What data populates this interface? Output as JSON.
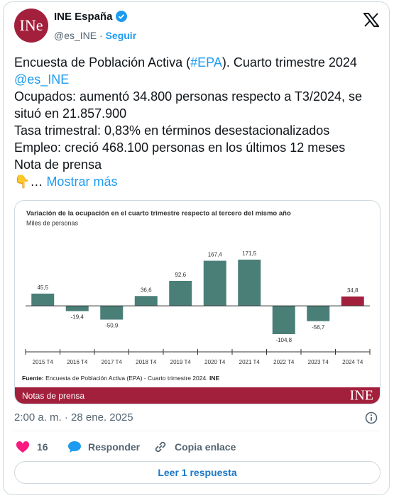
{
  "header": {
    "name": "INE España",
    "handle": "@es_INE",
    "follow": "Seguir",
    "avatar": "INe"
  },
  "body": [
    [
      {
        "text": "Encuesta de Población Activa ("
      },
      {
        "text": "#EPA",
        "link": true
      },
      {
        "text": "). Cuarto trimestre 2024 "
      },
      {
        "text": "@es_INE",
        "link": true
      }
    ],
    [
      {
        "text": "Ocupados: aumentó 34.800 personas respecto a T3/2024, se situó en 21.857.900"
      }
    ],
    [
      {
        "text": "Tasa trimestral: 0,83% en términos desestacionalizados"
      }
    ],
    [
      {
        "text": "Empleo: creció 468.100 personas en los últimos 12 meses"
      }
    ],
    [
      {
        "text": "Nota de prensa"
      }
    ],
    [
      {
        "text": "👇"
      },
      {
        "text": "… "
      },
      {
        "text": "Mostrar más",
        "link": true
      }
    ]
  ],
  "chart_data": {
    "type": "bar",
    "title": "Variación de la ocupación en el cuarto trimestre respecto al tercero del mismo año",
    "subtitle": "Miles de personas",
    "categories": [
      "2015 T4",
      "2016 T4",
      "2017 T4",
      "2018 T4",
      "2019 T4",
      "2020 T4",
      "2021 T4",
      "2022 T4",
      "2023 T4",
      "2024 T4"
    ],
    "values": [
      45.5,
      -19.4,
      -50.9,
      36.6,
      92.6,
      167.4,
      171.5,
      -104.8,
      -56.7,
      34.8
    ],
    "value_labels": [
      "45,5",
      "-19,4",
      "-50,9",
      "36,6",
      "92,6",
      "167,4",
      "171,5",
      "-104,8",
      "-56,7",
      "34,8"
    ],
    "colors": [
      "#4a7f78",
      "#4a7f78",
      "#4a7f78",
      "#4a7f78",
      "#4a7f78",
      "#4a7f78",
      "#4a7f78",
      "#4a7f78",
      "#4a7f78",
      "#a3203d"
    ],
    "source_label": "Fuente:",
    "source": " Encuesta de Población Activa (EPA) - Cuarto trimestre 2024. ",
    "source_org": "INE",
    "banner": "Notas de prensa",
    "logo": "INE"
  },
  "footer": {
    "timestamp": "2:00 a. m. · 28 ene. 2025",
    "likes": "16",
    "reply": "Responder",
    "copy": "Copia enlace",
    "read": "Leer 1 respuesta"
  }
}
